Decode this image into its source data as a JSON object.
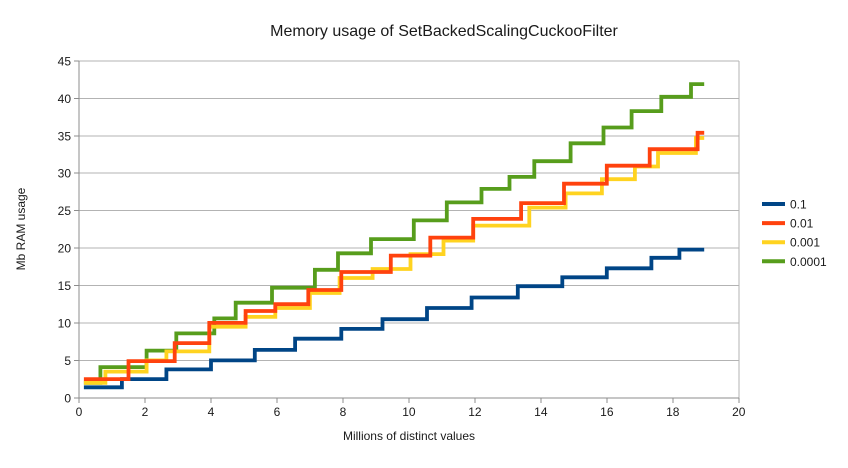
{
  "title": "Memory usage of SetBackedScalingCuckooFilter",
  "chart_data": {
    "type": "line",
    "line_style": "step-after",
    "title": "Memory usage of SetBackedScalingCuckooFilter",
    "xlabel": "Millions of distinct values",
    "ylabel": "Mb RAM usage",
    "xlim": [
      0,
      20
    ],
    "ylim": [
      0,
      45
    ],
    "x_ticks": [
      0,
      2,
      4,
      6,
      8,
      10,
      12,
      14,
      16,
      18,
      20
    ],
    "y_ticks": [
      0,
      5,
      10,
      15,
      20,
      25,
      30,
      35,
      40,
      45
    ],
    "grid": "horizontal-only",
    "grid_color": "#b3b3b3",
    "axis_color": "#8c8c8c",
    "legend_position": "right",
    "x_end": 18.95,
    "series": [
      {
        "name": "0.1",
        "color": "#004586",
        "points": [
          [
            0.15,
            1.4
          ],
          [
            1.3,
            2.5
          ],
          [
            2.65,
            3.8
          ],
          [
            4.0,
            5.0
          ],
          [
            5.33,
            6.4
          ],
          [
            6.55,
            7.9
          ],
          [
            7.95,
            9.2
          ],
          [
            9.2,
            10.5
          ],
          [
            10.55,
            12.0
          ],
          [
            11.9,
            13.4
          ],
          [
            13.3,
            14.9
          ],
          [
            14.65,
            16.1
          ],
          [
            16.0,
            17.3
          ],
          [
            17.35,
            18.7
          ],
          [
            18.2,
            19.8
          ]
        ]
      },
      {
        "name": "0.01",
        "color": "#FF420E",
        "points": [
          [
            0.15,
            2.5
          ],
          [
            1.5,
            4.9
          ],
          [
            2.9,
            7.3
          ],
          [
            3.95,
            10.0
          ],
          [
            5.05,
            11.6
          ],
          [
            5.95,
            12.5
          ],
          [
            6.95,
            14.4
          ],
          [
            7.95,
            16.8
          ],
          [
            9.45,
            19.0
          ],
          [
            10.65,
            21.4
          ],
          [
            11.95,
            23.9
          ],
          [
            13.4,
            26.0
          ],
          [
            14.7,
            28.6
          ],
          [
            16.0,
            31.0
          ],
          [
            17.3,
            33.2
          ],
          [
            18.75,
            35.4
          ]
        ]
      },
      {
        "name": "0.001",
        "color": "#FFD320",
        "points": [
          [
            0.15,
            2.0
          ],
          [
            0.8,
            3.5
          ],
          [
            2.05,
            5.0
          ],
          [
            2.65,
            6.2
          ],
          [
            3.95,
            9.5
          ],
          [
            5.05,
            10.8
          ],
          [
            5.95,
            12.0
          ],
          [
            7.0,
            14.0
          ],
          [
            7.9,
            16.0
          ],
          [
            8.9,
            17.2
          ],
          [
            10.05,
            19.2
          ],
          [
            11.05,
            21.0
          ],
          [
            11.95,
            23.0
          ],
          [
            13.65,
            25.4
          ],
          [
            14.75,
            27.3
          ],
          [
            15.85,
            29.2
          ],
          [
            16.85,
            30.9
          ],
          [
            17.55,
            32.7
          ],
          [
            18.7,
            34.7
          ]
        ]
      },
      {
        "name": "0.0001",
        "color": "#579D1C",
        "points": [
          [
            0.15,
            2.0
          ],
          [
            0.65,
            4.1
          ],
          [
            2.05,
            6.3
          ],
          [
            2.95,
            8.6
          ],
          [
            4.1,
            10.6
          ],
          [
            4.75,
            12.7
          ],
          [
            5.85,
            14.7
          ],
          [
            7.15,
            17.1
          ],
          [
            7.85,
            19.3
          ],
          [
            8.85,
            21.2
          ],
          [
            10.15,
            23.7
          ],
          [
            11.15,
            26.1
          ],
          [
            12.2,
            27.9
          ],
          [
            13.05,
            29.5
          ],
          [
            13.8,
            31.6
          ],
          [
            14.9,
            34.0
          ],
          [
            15.9,
            36.1
          ],
          [
            16.75,
            38.3
          ],
          [
            17.65,
            40.2
          ],
          [
            18.55,
            41.9
          ]
        ]
      }
    ]
  }
}
